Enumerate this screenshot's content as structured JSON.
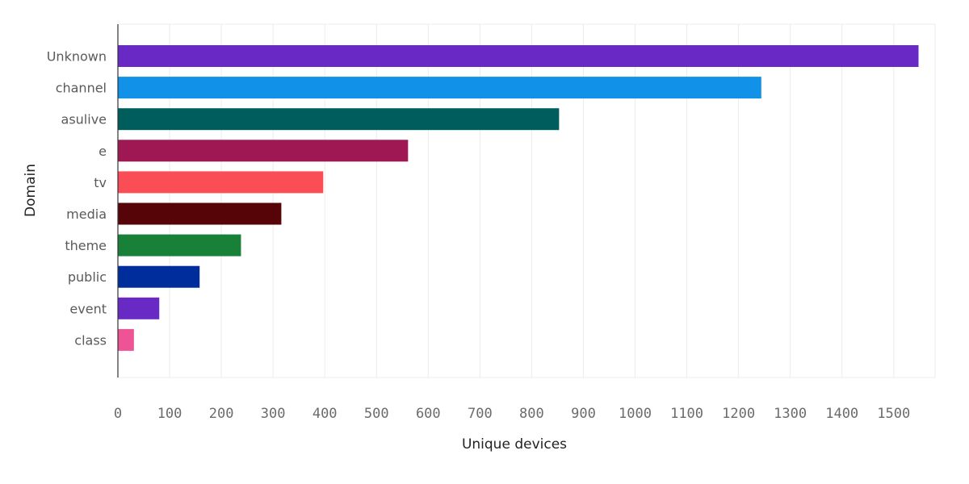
{
  "chart_data": {
    "type": "bar",
    "orientation": "horizontal",
    "title": "",
    "xlabel": "Unique devices",
    "ylabel": "Domain",
    "xlim": [
      0,
      1580
    ],
    "xticks": [
      0,
      100,
      200,
      300,
      400,
      500,
      600,
      700,
      800,
      900,
      1000,
      1100,
      1200,
      1300,
      1400,
      1500
    ],
    "grid": true,
    "categories": [
      "Unknown",
      "channel",
      "asulive",
      "e",
      "tv",
      "media",
      "theme",
      "public",
      "event",
      "class"
    ],
    "values": [
      1548,
      1244,
      853,
      561,
      397,
      316,
      238,
      158,
      80,
      31
    ],
    "colors": [
      "#6929c4",
      "#1192e8",
      "#005d5d",
      "#9f1853",
      "#fa4d56",
      "#570408",
      "#198038",
      "#002d9c",
      "#6929c4",
      "#ee5396"
    ]
  }
}
